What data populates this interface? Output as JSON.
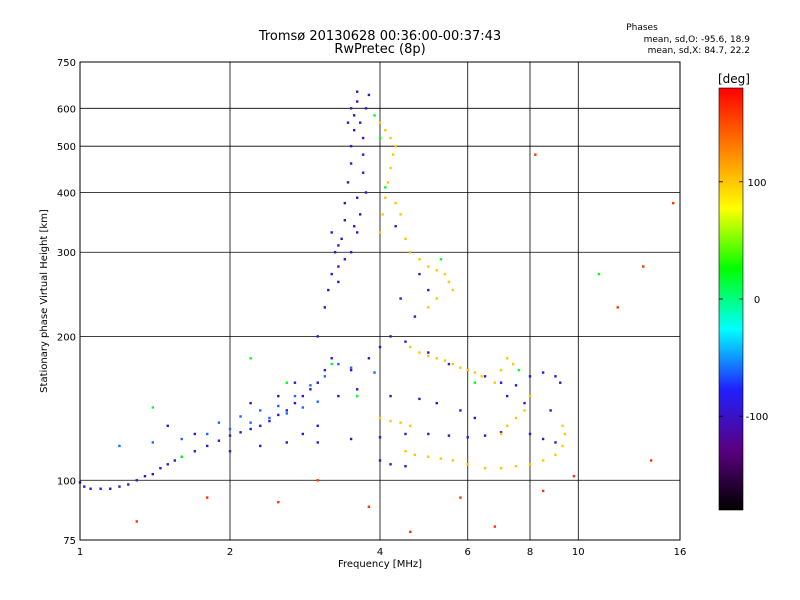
{
  "chart_data": {
    "type": "scatter",
    "title": "Tromsø 20130628 00:36:00-00:37:43",
    "subtitle": "RwPretec (8p)",
    "xlabel": "Frequency [MHz]",
    "ylabel": "Stationary phase Virtual Height [km]",
    "x_scale": "log",
    "y_scale": "log",
    "xlim": [
      1,
      16
    ],
    "ylim": [
      75,
      750
    ],
    "x_ticks": [
      1,
      2,
      4,
      6,
      8,
      10,
      16
    ],
    "y_ticks": [
      75,
      100,
      200,
      300,
      400,
      500,
      600,
      750
    ],
    "grid": true,
    "stats": {
      "heading": "Phases",
      "line_o": "mean, sd,O: -95.6, 18.9",
      "line_x": "mean, sd,X:  84.7, 22.2"
    },
    "colorbar": {
      "label": "[deg]",
      "ticks": [
        100,
        0,
        -100
      ],
      "range": [
        -180,
        180
      ],
      "colors": [
        "#000000",
        "#5a0080",
        "#2020ff",
        "#00ffff",
        "#00ff00",
        "#ffff00",
        "#ff8000",
        "#ff0000"
      ]
    },
    "series": [
      {
        "color_phase": -100,
        "points": [
          [
            1.0,
            99
          ],
          [
            1.02,
            97
          ],
          [
            1.05,
            96
          ],
          [
            1.1,
            96
          ],
          [
            1.15,
            96
          ],
          [
            1.2,
            97
          ],
          [
            1.25,
            98
          ],
          [
            1.3,
            100
          ],
          [
            1.35,
            102
          ],
          [
            1.4,
            103
          ],
          [
            1.45,
            106
          ],
          [
            1.5,
            108
          ],
          [
            1.55,
            110
          ],
          [
            1.6,
            112
          ],
          [
            1.7,
            115
          ],
          [
            1.8,
            118
          ],
          [
            1.9,
            121
          ],
          [
            2.0,
            124
          ],
          [
            2.1,
            126
          ],
          [
            2.2,
            128
          ],
          [
            2.3,
            130
          ],
          [
            2.4,
            133
          ],
          [
            2.5,
            137
          ],
          [
            2.6,
            140
          ],
          [
            2.7,
            145
          ],
          [
            2.8,
            150
          ],
          [
            2.9,
            155
          ],
          [
            3.0,
            160
          ],
          [
            3.1,
            170
          ],
          [
            3.2,
            180
          ],
          [
            3.2,
            330
          ],
          [
            3.25,
            300
          ],
          [
            3.3,
            280
          ],
          [
            3.3,
            260
          ],
          [
            3.35,
            320
          ],
          [
            3.4,
            350
          ],
          [
            3.4,
            380
          ],
          [
            3.45,
            420
          ],
          [
            3.5,
            460
          ],
          [
            3.5,
            500
          ],
          [
            3.55,
            540
          ],
          [
            3.55,
            580
          ],
          [
            3.6,
            620
          ],
          [
            3.6,
            650
          ],
          [
            3.65,
            560
          ],
          [
            3.7,
            480
          ],
          [
            3.7,
            440
          ],
          [
            3.75,
            400
          ],
          [
            3.65,
            360
          ],
          [
            3.55,
            340
          ],
          [
            3.3,
            310
          ],
          [
            3.4,
            290
          ],
          [
            3.5,
            300
          ],
          [
            3.6,
            330
          ],
          [
            3.7,
            520
          ],
          [
            3.75,
            600
          ],
          [
            3.8,
            640
          ],
          [
            3.5,
            600
          ],
          [
            3.45,
            560
          ],
          [
            3.6,
            390
          ],
          [
            3.5,
            170
          ],
          [
            3.8,
            180
          ],
          [
            4.0,
            190
          ],
          [
            4.2,
            200
          ],
          [
            4.5,
            195
          ],
          [
            5.0,
            185
          ],
          [
            5.5,
            175
          ],
          [
            6.0,
            170
          ],
          [
            6.5,
            165
          ],
          [
            7.0,
            160
          ],
          [
            7.5,
            158
          ],
          [
            8.0,
            165
          ],
          [
            8.5,
            168
          ],
          [
            9.0,
            165
          ],
          [
            9.2,
            160
          ],
          [
            3.0,
            120
          ],
          [
            3.5,
            122
          ],
          [
            4.0,
            123
          ],
          [
            4.5,
            125
          ],
          [
            5.0,
            125
          ],
          [
            5.5,
            124
          ],
          [
            6.0,
            123
          ],
          [
            6.5,
            124
          ],
          [
            7.0,
            126
          ],
          [
            8.0,
            125
          ],
          [
            8.5,
            122
          ],
          [
            9.0,
            120
          ],
          [
            4.0,
            110
          ],
          [
            4.2,
            108
          ],
          [
            4.5,
            107
          ],
          [
            3.3,
            150
          ],
          [
            3.6,
            155
          ],
          [
            4.2,
            150
          ],
          [
            4.8,
            148
          ],
          [
            5.2,
            145
          ],
          [
            5.8,
            140
          ],
          [
            6.2,
            135
          ],
          [
            7.2,
            150
          ],
          [
            7.8,
            145
          ],
          [
            8.8,
            140
          ],
          [
            1.5,
            130
          ],
          [
            1.7,
            125
          ],
          [
            2.0,
            115
          ],
          [
            2.3,
            118
          ],
          [
            2.6,
            120
          ],
          [
            2.8,
            125
          ],
          [
            3.0,
            130
          ],
          [
            2.2,
            145
          ],
          [
            2.5,
            150
          ],
          [
            2.7,
            160
          ],
          [
            3.0,
            200
          ],
          [
            3.1,
            230
          ],
          [
            3.15,
            250
          ],
          [
            3.2,
            270
          ],
          [
            4.3,
            340
          ],
          [
            4.6,
            300
          ],
          [
            4.8,
            270
          ],
          [
            5.0,
            250
          ],
          [
            4.4,
            240
          ],
          [
            4.7,
            220
          ]
        ]
      },
      {
        "color_phase": -60,
        "points": [
          [
            1.2,
            118
          ],
          [
            1.4,
            120
          ],
          [
            1.6,
            122
          ],
          [
            1.8,
            125
          ],
          [
            2.0,
            128
          ],
          [
            2.2,
            132
          ],
          [
            2.4,
            135
          ],
          [
            2.6,
            138
          ],
          [
            2.8,
            142
          ],
          [
            3.0,
            146
          ],
          [
            1.9,
            132
          ],
          [
            2.1,
            136
          ],
          [
            2.3,
            140
          ],
          [
            2.5,
            143
          ],
          [
            2.7,
            150
          ],
          [
            2.9,
            158
          ],
          [
            3.1,
            165
          ],
          [
            3.3,
            175
          ],
          [
            3.5,
            172
          ],
          [
            3.9,
            168
          ]
        ]
      },
      {
        "color_phase": 20,
        "points": [
          [
            1.4,
            142
          ],
          [
            1.6,
            112
          ],
          [
            3.6,
            150
          ],
          [
            4.1,
            410
          ],
          [
            4.0,
            520
          ],
          [
            3.9,
            580
          ],
          [
            5.3,
            290
          ],
          [
            6.2,
            160
          ],
          [
            7.6,
            170
          ],
          [
            11.0,
            270
          ],
          [
            2.2,
            180
          ],
          [
            2.6,
            160
          ],
          [
            3.2,
            175
          ]
        ]
      },
      {
        "color_phase": 100,
        "points": [
          [
            4.0,
            330
          ],
          [
            4.05,
            360
          ],
          [
            4.1,
            390
          ],
          [
            4.15,
            420
          ],
          [
            4.2,
            450
          ],
          [
            4.25,
            480
          ],
          [
            4.3,
            500
          ],
          [
            4.2,
            520
          ],
          [
            4.1,
            540
          ],
          [
            4.0,
            560
          ],
          [
            4.3,
            380
          ],
          [
            4.4,
            360
          ],
          [
            4.5,
            320
          ],
          [
            4.6,
            300
          ],
          [
            4.8,
            290
          ],
          [
            5.0,
            280
          ],
          [
            5.2,
            275
          ],
          [
            5.4,
            270
          ],
          [
            5.5,
            260
          ],
          [
            5.6,
            250
          ],
          [
            4.6,
            190
          ],
          [
            4.8,
            185
          ],
          [
            5.0,
            182
          ],
          [
            5.2,
            180
          ],
          [
            5.4,
            178
          ],
          [
            5.6,
            175
          ],
          [
            5.8,
            172
          ],
          [
            6.0,
            170
          ],
          [
            6.2,
            168
          ],
          [
            6.4,
            165
          ],
          [
            4.5,
            115
          ],
          [
            4.7,
            113
          ],
          [
            5.0,
            112
          ],
          [
            5.3,
            111
          ],
          [
            5.6,
            110
          ],
          [
            6.0,
            108
          ],
          [
            6.5,
            106
          ],
          [
            7.0,
            106
          ],
          [
            7.5,
            107
          ],
          [
            8.0,
            108
          ],
          [
            8.5,
            110
          ],
          [
            9.0,
            113
          ],
          [
            9.3,
            118
          ],
          [
            9.4,
            125
          ],
          [
            9.3,
            130
          ],
          [
            7.0,
            125
          ],
          [
            7.2,
            130
          ],
          [
            7.5,
            135
          ],
          [
            7.8,
            140
          ],
          [
            8.0,
            150
          ],
          [
            4.0,
            135
          ],
          [
            4.2,
            133
          ],
          [
            4.4,
            132
          ],
          [
            4.6,
            130
          ],
          [
            6.8,
            160
          ],
          [
            7.0,
            170
          ],
          [
            7.2,
            180
          ],
          [
            7.4,
            175
          ],
          [
            5.0,
            230
          ],
          [
            5.2,
            240
          ]
        ]
      },
      {
        "color_phase": 160,
        "points": [
          [
            1.8,
            92
          ],
          [
            2.5,
            90
          ],
          [
            3.8,
            88
          ],
          [
            4.6,
            78
          ],
          [
            6.8,
            80
          ],
          [
            8.5,
            95
          ],
          [
            9.8,
            102
          ],
          [
            12.0,
            230
          ],
          [
            13.5,
            280
          ],
          [
            15.5,
            380
          ],
          [
            1.3,
            82
          ],
          [
            3.0,
            100
          ],
          [
            5.8,
            92
          ],
          [
            8.2,
            480
          ],
          [
            14.0,
            110
          ]
        ]
      }
    ]
  }
}
